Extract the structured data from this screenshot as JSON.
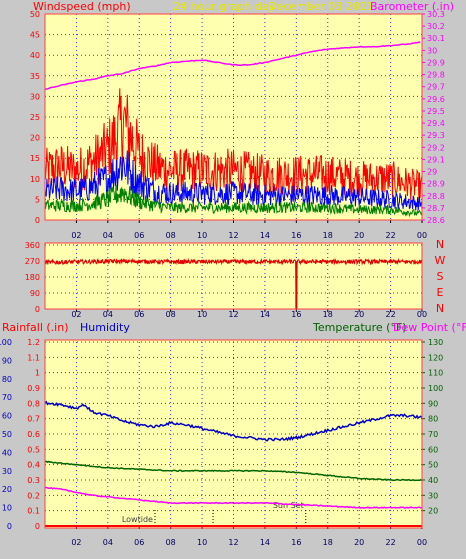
{
  "header": {
    "left_label": "Windspeed (mph)",
    "center_label": "24 hour graph day",
    "date_label": "December 03 2021",
    "right_label": "Barometer (.in)"
  },
  "colors": {
    "background": "#c8c8c8",
    "plot_bg": "#ffffb0",
    "wind_gust": "#ff0000",
    "wind_avg": "#0000ff",
    "wind_low": "#008000",
    "barometer": "#ff00ff",
    "direction": "#e00000",
    "humidity": "#0000c0",
    "temperature": "#006400",
    "dewpoint": "#ff00ff",
    "rainfall": "#ff0000"
  },
  "chart_data": [
    {
      "type": "line",
      "title": "24 hour graph day",
      "subtitle": "December 03 2021",
      "xlabel": "",
      "ylabel": "Windspeed (mph)",
      "y2label": "Barometer (.in)",
      "x_ticks": [
        "02",
        "04",
        "06",
        "08",
        "10",
        "12",
        "14",
        "16",
        "18",
        "20",
        "22",
        "00"
      ],
      "xlim": [
        0,
        24
      ],
      "ylim": [
        0,
        50
      ],
      "y_ticks": [
        0,
        5,
        10,
        15,
        20,
        25,
        30,
        35,
        40,
        45,
        50
      ],
      "y2lim": [
        28.6,
        30.3
      ],
      "y2_ticks": [
        "28.6",
        "28.7",
        "28.8",
        "28.9",
        "29",
        "29.1",
        "29.2",
        "29.3",
        "29.4",
        "29.5",
        "29.6",
        "29.7",
        "29.8",
        "29.9",
        "30",
        "30.1",
        "30.2",
        "30.3"
      ],
      "grid": true,
      "series": [
        {
          "name": "",
          "color": "#ff0000",
          "axis": "left",
          "style": "noisy",
          "x": [
            0,
            1,
            2,
            3,
            4,
            4.5,
            5,
            5.5,
            6,
            7,
            8,
            10,
            12,
            14,
            16,
            18,
            20,
            22,
            23,
            24
          ],
          "values": [
            12,
            13,
            12,
            14,
            17,
            20,
            24,
            20,
            16,
            13,
            12,
            12,
            12,
            11,
            11,
            11,
            10,
            10,
            9,
            8
          ]
        },
        {
          "name": "",
          "color": "#0000ff",
          "axis": "left",
          "style": "noisy",
          "x": [
            0,
            1,
            2,
            3,
            4,
            4.5,
            5,
            5.5,
            6,
            7,
            8,
            10,
            12,
            14,
            16,
            18,
            20,
            22,
            23,
            24
          ],
          "values": [
            7,
            7.5,
            7,
            8,
            10,
            12,
            14,
            11,
            9,
            7,
            6.5,
            6.5,
            6.5,
            6,
            6,
            6,
            5.5,
            5,
            4.5,
            4
          ]
        },
        {
          "name": "",
          "color": "#008000",
          "axis": "left",
          "style": "noisy",
          "x": [
            0,
            1,
            2,
            3,
            4,
            4.5,
            5,
            5.5,
            6,
            7,
            8,
            10,
            12,
            14,
            16,
            18,
            20,
            22,
            23,
            24
          ],
          "values": [
            3.5,
            3.5,
            3.5,
            4,
            5,
            6,
            7,
            5.5,
            4.5,
            3.5,
            3,
            3,
            3,
            3,
            3,
            3,
            2.5,
            2.5,
            2,
            1.5
          ]
        },
        {
          "name": "",
          "color": "#ff00ff",
          "axis": "right",
          "style": "smooth",
          "x": [
            0,
            1,
            2,
            3,
            4,
            5,
            6,
            7,
            8,
            9,
            10,
            11,
            12,
            13,
            14,
            15,
            16,
            17,
            18,
            19,
            20,
            21,
            22,
            23,
            24
          ],
          "values": [
            29.68,
            29.71,
            29.74,
            29.76,
            29.79,
            29.81,
            29.85,
            29.87,
            29.9,
            29.91,
            29.92,
            29.9,
            29.88,
            29.88,
            29.9,
            29.93,
            29.96,
            29.99,
            30.01,
            30.02,
            30.03,
            30.03,
            30.04,
            30.05,
            30.07
          ]
        }
      ]
    },
    {
      "type": "line",
      "title": "",
      "x_ticks": [
        "02",
        "04",
        "06",
        "08",
        "10",
        "12",
        "14",
        "16",
        "18",
        "20",
        "22",
        "00"
      ],
      "xlim": [
        0,
        24
      ],
      "ylim": [
        0,
        360
      ],
      "y_ticks": [
        0,
        90,
        180,
        270,
        360
      ],
      "right_labels": [
        "N",
        "W",
        "S",
        "E",
        "N"
      ],
      "grid": true,
      "series": [
        {
          "name": "",
          "color": "#e00000",
          "x": [
            0,
            2,
            4,
            6,
            8,
            10,
            12,
            14,
            15.9,
            16,
            16.1,
            18,
            20,
            22,
            24
          ],
          "values": [
            262,
            265,
            268,
            268,
            265,
            266,
            266,
            266,
            266,
            0,
            266,
            266,
            266,
            266,
            266
          ],
          "band": 12
        }
      ]
    },
    {
      "type": "line",
      "title": "",
      "left_label": "Rainfall (.in)",
      "left2_label": "Humidity",
      "right_label": "Temperature (°F)",
      "right2_label": "Dew Point (°F)",
      "x_ticks": [
        "02",
        "04",
        "06",
        "08",
        "10",
        "12",
        "14",
        "16",
        "18",
        "20",
        "22",
        "00"
      ],
      "xlim": [
        0,
        24
      ],
      "humidity_ticks": [
        0,
        10,
        20,
        30,
        40,
        50,
        60,
        70,
        80,
        90,
        100
      ],
      "rain_ticks": [
        "0",
        "0.1",
        "0.2",
        "0.3",
        "0.4",
        "0.5",
        "0.6",
        "0.7",
        "0.8",
        "0.9",
        "1",
        "1.1",
        "1.2"
      ],
      "temp_ticks": [
        20,
        30,
        40,
        50,
        60,
        70,
        80,
        90,
        100,
        110,
        120,
        130
      ],
      "ylim_humidity": [
        0,
        100
      ],
      "ylim_temp": [
        10,
        130
      ],
      "grid": true,
      "annotations": [
        {
          "text": "Lowtide",
          "x": 7.0
        },
        {
          "text": "",
          "x": 10.7
        },
        {
          "text": "Sun Set",
          "x": 16.6
        }
      ],
      "series": [
        {
          "name": "Humidity",
          "color": "#0000c0",
          "axis": "humidity",
          "x": [
            0,
            1,
            2,
            2.5,
            3,
            4,
            5,
            6,
            7,
            8,
            9,
            10,
            11,
            12,
            13,
            14,
            15,
            16,
            17,
            18,
            19,
            20,
            21,
            22,
            23,
            24
          ],
          "values": [
            67,
            66,
            64,
            66,
            62,
            60,
            57,
            55,
            54,
            56,
            55,
            53,
            51,
            49,
            48,
            47,
            47,
            48,
            50,
            52,
            54,
            56,
            58,
            60,
            60,
            59
          ]
        },
        {
          "name": "Temperature (°F)",
          "color": "#006400",
          "axis": "temp",
          "x": [
            0,
            2,
            4,
            6,
            8,
            10,
            12,
            14,
            16,
            18,
            20,
            22,
            24
          ],
          "values": [
            52,
            50,
            48,
            47,
            46,
            46,
            46,
            46,
            45,
            43,
            41,
            40,
            40
          ]
        },
        {
          "name": "Dew Point (°F)",
          "color": "#ff00ff",
          "axis": "temp",
          "x": [
            0,
            1,
            2,
            3,
            4,
            5,
            6,
            7,
            8,
            10,
            12,
            14,
            16,
            18,
            20,
            22,
            24
          ],
          "values": [
            35,
            34,
            32,
            30,
            29,
            28,
            27,
            26,
            25,
            25,
            25,
            25,
            24,
            23,
            22,
            22,
            22
          ]
        },
        {
          "name": "Rainfall (.in)",
          "color": "#ff0000",
          "axis": "rain",
          "x": [
            0,
            24
          ],
          "values": [
            0,
            0
          ]
        }
      ]
    }
  ]
}
